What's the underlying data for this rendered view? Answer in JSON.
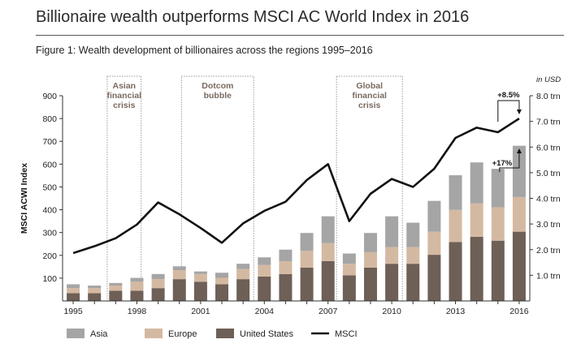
{
  "header": {
    "title": "Billionaire wealth outperforms MSCI AC World Index in 2016",
    "subtitle": "Figure 1: Wealth development of billionaires across the regions 1995–2016"
  },
  "chart_data": {
    "type": "bar",
    "stacked": true,
    "x": [
      1995,
      1996,
      1997,
      1998,
      1999,
      2000,
      2001,
      2002,
      2003,
      2004,
      2005,
      2006,
      2007,
      2008,
      2009,
      2010,
      2011,
      2012,
      2013,
      2014,
      2015,
      2016
    ],
    "x_tick_labels": [
      "1995",
      "1998",
      "2001",
      "2004",
      "2007",
      "2010",
      "2013",
      "2016"
    ],
    "ylabel": "MSCI ACWI Index",
    "ylim": [
      0,
      900
    ],
    "y_ticks": [
      "100",
      "200",
      "300",
      "400",
      "500",
      "600",
      "700",
      "800",
      "900"
    ],
    "y2_unit": "in USD",
    "y2lim": [
      0,
      8.0
    ],
    "y2_ticks": [
      "1.0 trn",
      "2.0 trn",
      "3.0 trn",
      "4.0 trn",
      "5.0 trn",
      "6.0 trn",
      "7.0 trn",
      "8.0 trn"
    ],
    "series": [
      {
        "name": "United States",
        "color": "#6e5f57",
        "axis": "right",
        "values": [
          0.3,
          0.3,
          0.4,
          0.4,
          0.5,
          0.85,
          0.75,
          0.65,
          0.85,
          0.95,
          1.05,
          1.3,
          1.55,
          1.0,
          1.3,
          1.45,
          1.45,
          1.8,
          2.3,
          2.5,
          2.35,
          2.7
        ]
      },
      {
        "name": "Europe",
        "color": "#d4b9a2",
        "axis": "right",
        "values": [
          0.2,
          0.2,
          0.2,
          0.35,
          0.35,
          0.35,
          0.3,
          0.25,
          0.4,
          0.45,
          0.5,
          0.65,
          0.7,
          0.45,
          0.6,
          0.65,
          0.65,
          0.9,
          1.25,
          1.3,
          1.3,
          1.35
        ]
      },
      {
        "name": "Asia",
        "color": "#a5a5a5",
        "axis": "right",
        "values": [
          0.15,
          0.1,
          0.1,
          0.15,
          0.2,
          0.15,
          0.1,
          0.2,
          0.2,
          0.3,
          0.45,
          0.7,
          1.05,
          0.4,
          0.75,
          1.2,
          0.95,
          1.2,
          1.35,
          1.6,
          1.5,
          2.0
        ]
      },
      {
        "name": "MSCI",
        "type": "line",
        "color": "#111111",
        "axis": "left",
        "values": [
          210,
          240,
          275,
          335,
          432,
          380,
          320,
          255,
          340,
          395,
          435,
          530,
          600,
          350,
          470,
          535,
          500,
          580,
          715,
          760,
          740,
          800
        ]
      }
    ],
    "shaded_periods": [
      {
        "label": [
          "Asian",
          "financial",
          "crisis"
        ],
        "from": 1996.6,
        "to": 1998.2
      },
      {
        "label": [
          "Dotcom",
          "bubble"
        ],
        "from": 2000.1,
        "to": 2003.5
      },
      {
        "label": [
          "Global",
          "financial",
          "crisis"
        ],
        "from": 2007.4,
        "to": 2010.5
      }
    ],
    "annotations": [
      "+8.5%",
      "+17%"
    ],
    "legend_position": "bottom-left"
  }
}
